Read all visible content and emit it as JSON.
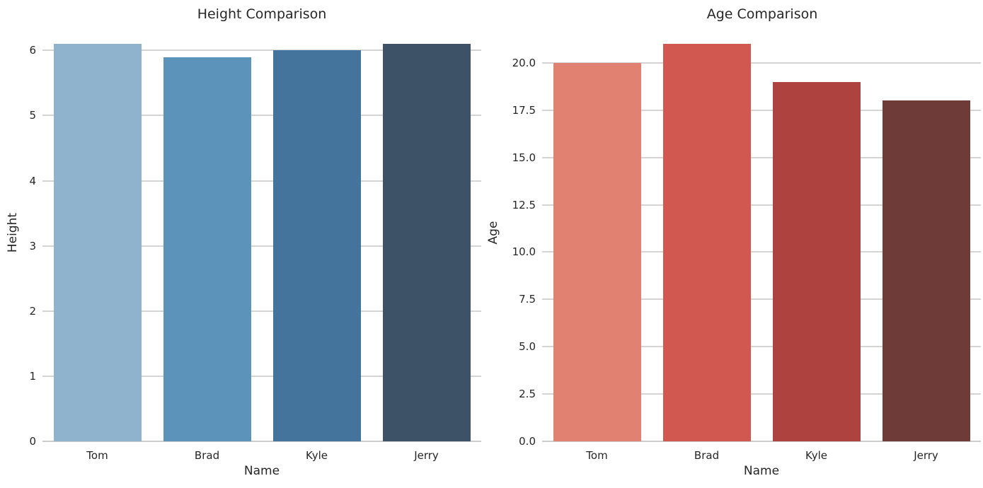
{
  "figure": {
    "background": "#ffffff",
    "text_color": "#262626",
    "grid_color": "#d4d4d4"
  },
  "chart_data": [
    {
      "type": "bar",
      "title": "Height Comparison",
      "xlabel": "Name",
      "ylabel": "Height",
      "categories": [
        "Tom",
        "Brad",
        "Kyle",
        "Jerry"
      ],
      "values": [
        6.1,
        5.9,
        6.0,
        6.1
      ],
      "ylim": [
        0,
        6.405
      ],
      "yticks": [
        0,
        1,
        2,
        3,
        4,
        5,
        6
      ],
      "ytick_labels": [
        "0",
        "1",
        "2",
        "3",
        "4",
        "5",
        "6"
      ],
      "bar_colors": [
        "#8fb2cd",
        "#5b93bb",
        "#44749b",
        "#3d5266"
      ],
      "grid": true,
      "legend": false
    },
    {
      "type": "bar",
      "title": "Age Comparison",
      "xlabel": "Name",
      "ylabel": "Age",
      "categories": [
        "Tom",
        "Brad",
        "Kyle",
        "Jerry"
      ],
      "values": [
        20,
        21,
        19,
        18
      ],
      "ylim": [
        0,
        22.05
      ],
      "yticks": [
        0,
        2.5,
        5,
        7.5,
        10,
        12.5,
        15,
        17.5,
        20
      ],
      "ytick_labels": [
        "0.0",
        "2.5",
        "5.0",
        "7.5",
        "10.0",
        "12.5",
        "15.0",
        "17.5",
        "20.0"
      ],
      "bar_colors": [
        "#e08172",
        "#d15850",
        "#ad423e",
        "#6e3b38"
      ],
      "grid": true,
      "legend": false
    }
  ]
}
